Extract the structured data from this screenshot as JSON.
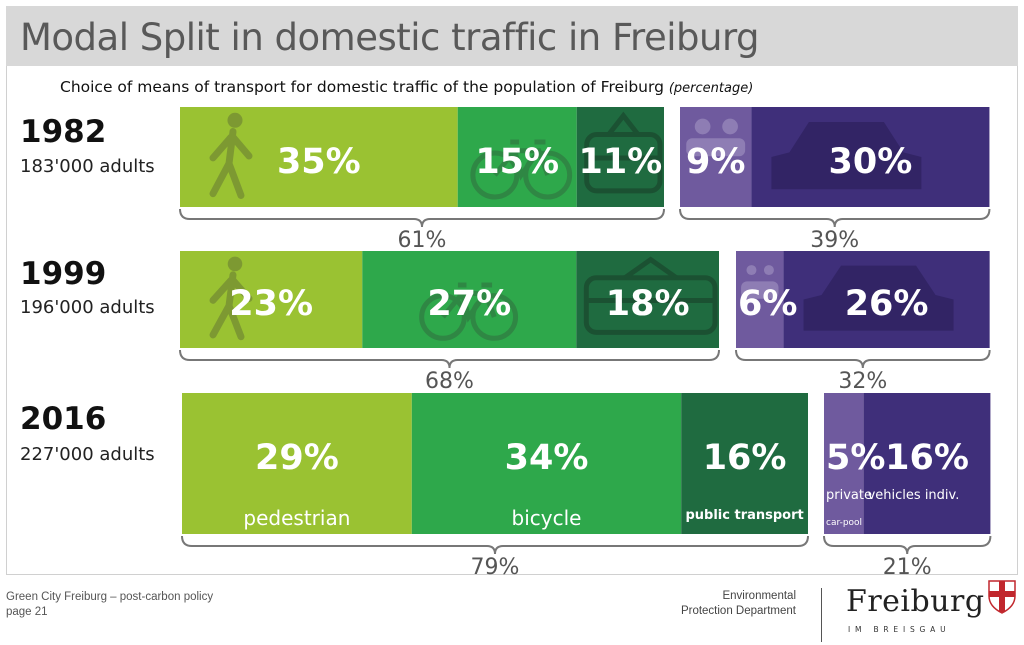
{
  "header": {
    "title": "Modal Split in domestic traffic in Freiburg",
    "subtitle_text": "Choice of means of  transport for domestic traffic of the population of Freiburg",
    "subtitle_unit": "(percentage)"
  },
  "rows": [
    {
      "year": "1982",
      "adults": "183'000 adults"
    },
    {
      "year": "1999",
      "adults": "196'000 adults"
    },
    {
      "year": "2016",
      "adults": "227'000 adults"
    }
  ],
  "footer": {
    "left_line1": "Green City Freiburg – post-carbon policy",
    "left_line2": "page 21",
    "dept_line1": "Environmental",
    "dept_line2": "Protection Department",
    "logo_word": "Freiburg",
    "logo_sub": "IM BREISGAU"
  },
  "colors": {
    "pedestrian": "#9ac232",
    "bicycle": "#2ea84b",
    "public_transport": "#1f6b40",
    "carpool": "#6f5a9e",
    "private_vehicle": "#3f2f7a",
    "brace": "#777777"
  },
  "chart_data": {
    "type": "bar",
    "orientation": "horizontal-stacked",
    "categories": [
      "1982",
      "1999",
      "2016"
    ],
    "series": [
      {
        "name": "pedestrian",
        "values": [
          35,
          23,
          29
        ]
      },
      {
        "name": "bicycle",
        "values": [
          15,
          27,
          34
        ]
      },
      {
        "name": "public transport",
        "values": [
          11,
          18,
          16
        ]
      },
      {
        "name": "car-pool",
        "values": [
          9,
          6,
          5
        ]
      },
      {
        "name": "private vehicles indiv.",
        "values": [
          30,
          26,
          16
        ]
      }
    ],
    "group_totals": {
      "green": [
        61,
        68,
        79
      ],
      "motorized": [
        39,
        32,
        21
      ]
    },
    "value_labels": [
      [
        "35%",
        "15%",
        "11%",
        "9%",
        "30%"
      ],
      [
        "23%",
        "27%",
        "18%",
        "6%",
        "26%"
      ],
      [
        "29%",
        "34%",
        "16%",
        "5%",
        "16%"
      ]
    ],
    "group_labels": [
      [
        "61%",
        "39%"
      ],
      [
        "68%",
        "32%"
      ],
      [
        "79%",
        "21%"
      ]
    ],
    "segment_labels_2016": [
      "pedestrian",
      "bicycle",
      "public transport",
      "private car-pool",
      "vehicles indiv."
    ]
  }
}
